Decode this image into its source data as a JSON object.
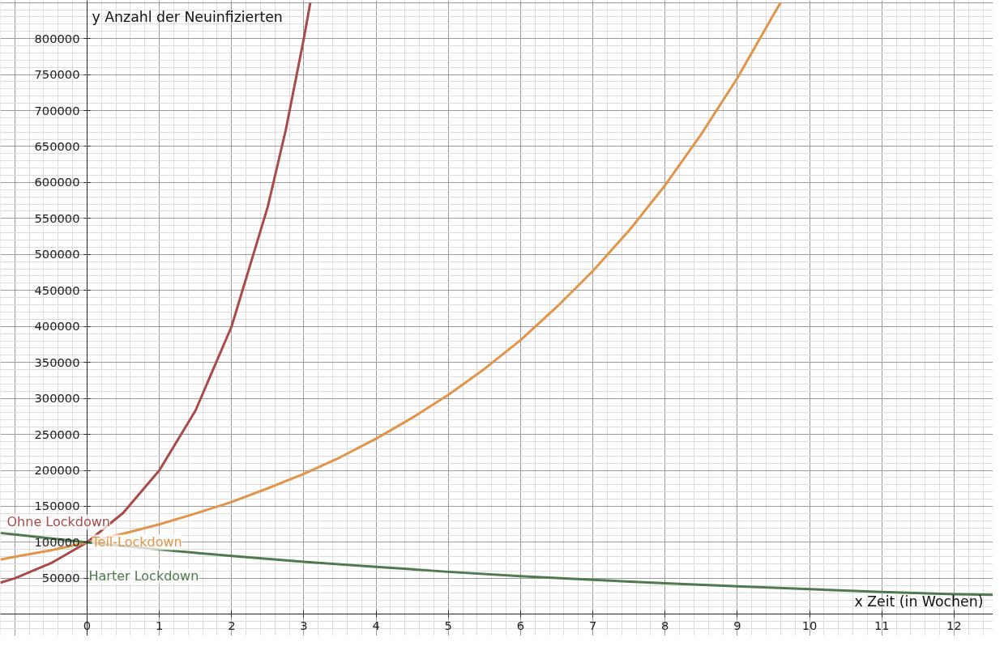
{
  "chart_data": {
    "type": "line",
    "xlabel": "x Zeit (in Wochen)",
    "ylabel": "y Anzahl der Neuinfizierten",
    "xlim": [
      -1.2,
      12.54
    ],
    "ylim": [
      -30000,
      853000
    ],
    "xticks": [
      0,
      1,
      2,
      3,
      4,
      5,
      6,
      7,
      8,
      9,
      10,
      11,
      12
    ],
    "yticks": [
      50000,
      100000,
      150000,
      200000,
      250000,
      300000,
      350000,
      400000,
      450000,
      500000,
      550000,
      600000,
      650000,
      700000,
      750000,
      800000
    ],
    "grid": true,
    "marker": "none",
    "line_style": "solid",
    "series": [
      {
        "name": "Ohne Lockdown",
        "color": "#a84a4a",
        "x": [
          -1.2,
          -1,
          -0.5,
          0,
          0.5,
          1,
          1.5,
          2,
          2.5,
          2.75,
          3,
          3.09
        ],
        "values": [
          44000,
          50000,
          71000,
          100000,
          141000,
          200000,
          283000,
          400000,
          566000,
          673000,
          800000,
          850000
        ]
      },
      {
        "name": "Teil-Lockdown",
        "color": "#e0954a",
        "x": [
          -1.2,
          -1,
          -0.5,
          0,
          0.5,
          1,
          1.5,
          2,
          2.5,
          3,
          3.5,
          4,
          4.5,
          5,
          5.5,
          6,
          6.5,
          7,
          7.5,
          8,
          8.5,
          9,
          9.5,
          9.6
        ],
        "values": [
          76000,
          80000,
          89000,
          100000,
          112000,
          125000,
          140000,
          156000,
          175000,
          195000,
          218000,
          244000,
          273000,
          305000,
          341000,
          381000,
          427000,
          477000,
          533000,
          596000,
          667000,
          745000,
          833000,
          850000
        ]
      },
      {
        "name": "Harter Lockdown",
        "color": "#4f7a4f",
        "x": [
          -1.2,
          -1,
          0,
          1,
          2,
          3,
          4,
          5,
          6,
          7,
          8,
          9,
          10,
          11,
          12,
          12.54
        ],
        "values": [
          113000,
          111000,
          100000,
          90000,
          81000,
          73000,
          66000,
          59000,
          53000,
          48000,
          43000,
          39000,
          35000,
          31000,
          28000,
          27000
        ]
      }
    ]
  }
}
